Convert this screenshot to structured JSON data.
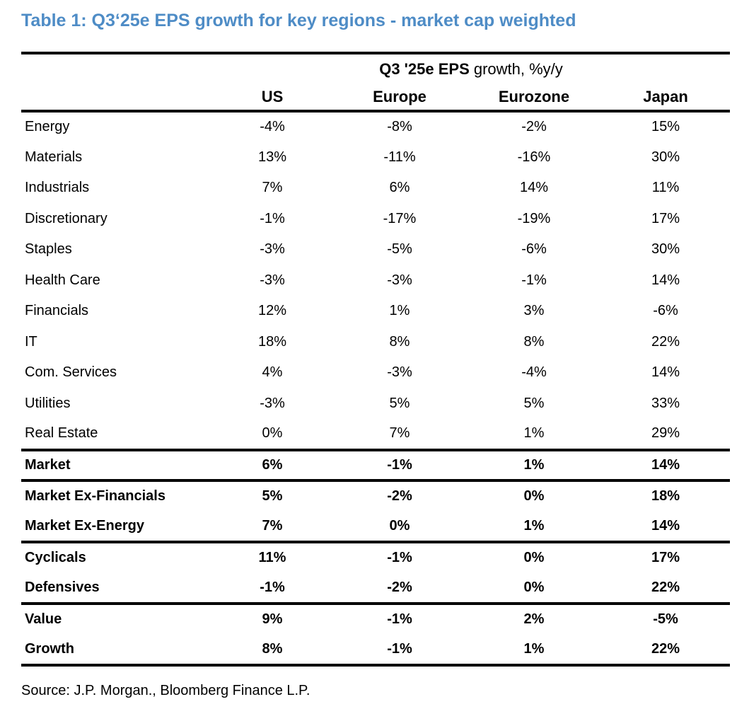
{
  "title": "Table 1: Q3‘25e EPS growth for key regions - market cap weighted",
  "source": "Source: J.P. Morgan., Bloomberg Finance L.P.",
  "colors": {
    "title_blue": "#4e8cc6",
    "rule_black": "#000000",
    "background": "#ffffff"
  },
  "chart_data": {
    "type": "table",
    "title": "Table 1: Q3‘25e EPS growth for key regions - market cap weighted",
    "group_header": {
      "full": "Q3 '25e EPS growth, %y/y",
      "bold": "Q3 '25e EPS",
      "rest": " growth, %y/y"
    },
    "columns": [
      "US",
      "Europe",
      "Eurozone",
      "Japan"
    ],
    "rows": [
      {
        "label": "Energy",
        "values": [
          "-4%",
          "-8%",
          "-2%",
          "15%"
        ],
        "bold": false
      },
      {
        "label": "Materials",
        "values": [
          "13%",
          "-11%",
          "-16%",
          "30%"
        ],
        "bold": false
      },
      {
        "label": "Industrials",
        "values": [
          "7%",
          "6%",
          "14%",
          "11%"
        ],
        "bold": false
      },
      {
        "label": "Discretionary",
        "values": [
          "-1%",
          "-17%",
          "-19%",
          "17%"
        ],
        "bold": false
      },
      {
        "label": "Staples",
        "values": [
          "-3%",
          "-5%",
          "-6%",
          "30%"
        ],
        "bold": false
      },
      {
        "label": "Health Care",
        "values": [
          "-3%",
          "-3%",
          "-1%",
          "14%"
        ],
        "bold": false
      },
      {
        "label": "Financials",
        "values": [
          "12%",
          "1%",
          "3%",
          "-6%"
        ],
        "bold": false
      },
      {
        "label": "IT",
        "values": [
          "18%",
          "8%",
          "8%",
          "22%"
        ],
        "bold": false
      },
      {
        "label": "Com. Services",
        "values": [
          "4%",
          "-3%",
          "-4%",
          "14%"
        ],
        "bold": false
      },
      {
        "label": "Utilities",
        "values": [
          "-3%",
          "5%",
          "5%",
          "33%"
        ],
        "bold": false
      },
      {
        "label": "Real Estate",
        "values": [
          "0%",
          "7%",
          "1%",
          "29%"
        ],
        "bold": false
      },
      {
        "label": "Market",
        "values": [
          "6%",
          "-1%",
          "1%",
          "14%"
        ],
        "bold": true
      },
      {
        "label": "Market Ex-Financials",
        "values": [
          "5%",
          "-2%",
          "0%",
          "18%"
        ],
        "bold": true
      },
      {
        "label": "Market Ex-Energy",
        "values": [
          "7%",
          "0%",
          "1%",
          "14%"
        ],
        "bold": true
      },
      {
        "label": "Cyclicals",
        "values": [
          "11%",
          "-1%",
          "0%",
          "17%"
        ],
        "bold": true
      },
      {
        "label": "Defensives",
        "values": [
          "-1%",
          "-2%",
          "0%",
          "22%"
        ],
        "bold": true
      },
      {
        "label": "Value",
        "values": [
          "9%",
          "-1%",
          "2%",
          "-5%"
        ],
        "bold": true
      },
      {
        "label": "Growth",
        "values": [
          "8%",
          "-1%",
          "1%",
          "22%"
        ],
        "bold": true
      }
    ],
    "source": "Source: J.P. Morgan., Bloomberg Finance L.P."
  }
}
